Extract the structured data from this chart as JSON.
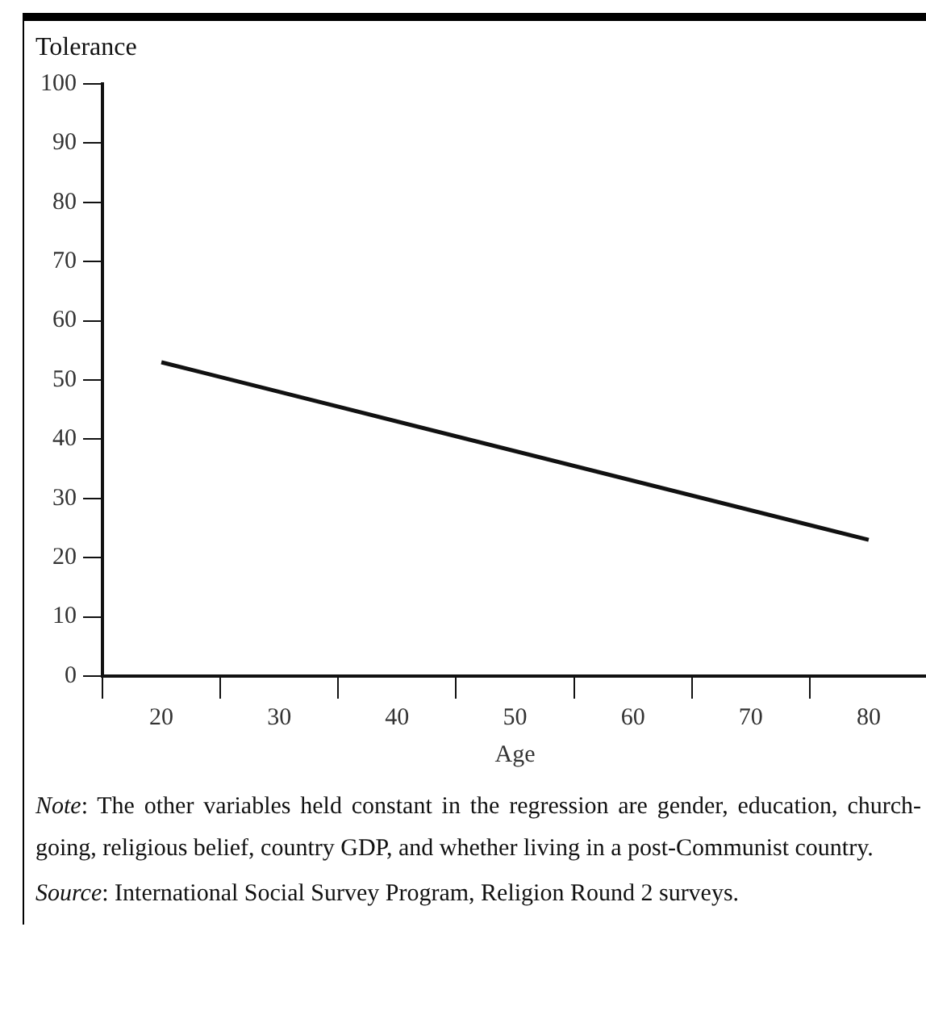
{
  "chart_data": {
    "type": "line",
    "ylabel": "Tolerance",
    "xlabel": "Age",
    "x": [
      20,
      80
    ],
    "series": [
      {
        "color": "#111111",
        "values": [
          53,
          23
        ]
      }
    ],
    "xlim": [
      15,
      85
    ],
    "xticks": [
      {
        "value": 15,
        "label": null
      },
      20,
      {
        "value": 25,
        "label": null
      },
      30,
      {
        "value": 35,
        "label": null
      },
      40,
      {
        "value": 45,
        "label": null
      },
      50,
      {
        "value": 55,
        "label": null
      },
      60,
      {
        "value": 65,
        "label": null
      },
      70,
      {
        "value": 75,
        "label": null
      },
      80
    ],
    "ylim": [
      0,
      100
    ],
    "yticks": [
      0,
      10,
      20,
      30,
      40,
      50,
      60,
      70,
      80,
      90,
      100
    ],
    "grid": false,
    "legend": false,
    "marker": "none",
    "line_style": "solid",
    "annotations": [
      "Note: The other variables held constant in the regression are gender, education, church-going, religious belief, country GDP, and whether living in a post-Communist country.",
      "Source: International Social Survey Program, Religion Round 2 surveys."
    ]
  }
}
